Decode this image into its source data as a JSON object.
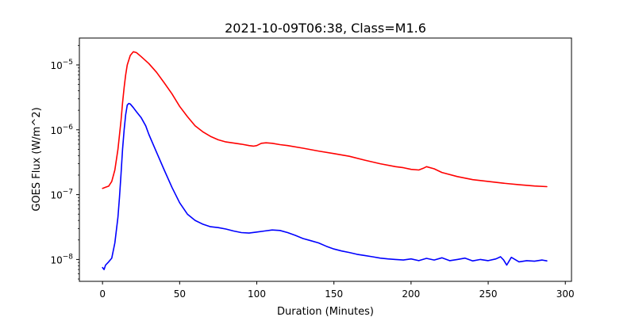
{
  "chart_data": {
    "type": "line",
    "title": "2021-10-09T06:38, Class=M1.6",
    "xlabel": "Duration (Minutes)",
    "ylabel": "GOES Flux (W/m^2)",
    "xscale": "linear",
    "yscale": "log",
    "xlim": [
      -15,
      304
    ],
    "ylim": [
      4.6e-09,
      2.6e-05
    ],
    "grid": false,
    "legend": "none",
    "x_ticks": [
      {
        "value": 0,
        "label": "0"
      },
      {
        "value": 50,
        "label": "50"
      },
      {
        "value": 100,
        "label": "100"
      },
      {
        "value": 150,
        "label": "150"
      },
      {
        "value": 200,
        "label": "200"
      },
      {
        "value": 250,
        "label": "250"
      },
      {
        "value": 300,
        "label": "300"
      }
    ],
    "y_ticks": [
      {
        "value": 1e-08,
        "base": "10",
        "exp": "−8"
      },
      {
        "value": 1e-07,
        "base": "10",
        "exp": "−7"
      },
      {
        "value": 1e-06,
        "base": "10",
        "exp": "−6"
      },
      {
        "value": 1e-05,
        "base": "10",
        "exp": "−5"
      }
    ],
    "series": [
      {
        "color": "#ff0000",
        "x": [
          0,
          2,
          4,
          6,
          8,
          10,
          12,
          13,
          14,
          15,
          16,
          18,
          20,
          22,
          25,
          30,
          35,
          40,
          45,
          50,
          55,
          60,
          65,
          70,
          75,
          80,
          90,
          95,
          98,
          100,
          103,
          106,
          110,
          115,
          120,
          130,
          140,
          150,
          160,
          170,
          180,
          190,
          195,
          200,
          205,
          208,
          210,
          215,
          220,
          230,
          240,
          250,
          260,
          270,
          280,
          288
        ],
        "y": [
          1.25e-07,
          1.3e-07,
          1.35e-07,
          1.6e-07,
          2.4e-07,
          5e-07,
          1.4e-06,
          2.6e-06,
          4.5e-06,
          7e-06,
          1e-05,
          1.4e-05,
          1.6e-05,
          1.55e-05,
          1.35e-05,
          1.05e-05,
          7.7e-06,
          5.3e-06,
          3.6e-06,
          2.3e-06,
          1.6e-06,
          1.15e-06,
          9.3e-07,
          7.9e-07,
          7e-07,
          6.5e-07,
          6e-07,
          5.7e-07,
          5.6e-07,
          5.7e-07,
          6.2e-07,
          6.3e-07,
          6.2e-07,
          5.9e-07,
          5.7e-07,
          5.2e-07,
          4.7e-07,
          4.3e-07,
          3.9e-07,
          3.4e-07,
          3e-07,
          2.7e-07,
          2.6e-07,
          2.45e-07,
          2.4e-07,
          2.55e-07,
          2.7e-07,
          2.5e-07,
          2.2e-07,
          1.9e-07,
          1.7e-07,
          1.6e-07,
          1.5e-07,
          1.42e-07,
          1.36e-07,
          1.33e-07
        ]
      },
      {
        "color": "#0000ff",
        "x": [
          0,
          1,
          2,
          4,
          6,
          8,
          10,
          11,
          12,
          13,
          14,
          15,
          16,
          17,
          18,
          20,
          22,
          25,
          28,
          30,
          35,
          40,
          45,
          50,
          55,
          60,
          65,
          70,
          75,
          80,
          85,
          90,
          95,
          100,
          105,
          110,
          115,
          120,
          125,
          130,
          135,
          140,
          145,
          150,
          155,
          160,
          165,
          170,
          175,
          180,
          185,
          190,
          195,
          200,
          205,
          210,
          215,
          220,
          225,
          230,
          235,
          240,
          245,
          250,
          255,
          258,
          260,
          262,
          265,
          270,
          275,
          280,
          285,
          288
        ],
        "y": [
          7.5e-09,
          7e-09,
          8.2e-09,
          9.2e-09,
          1.05e-08,
          1.8e-08,
          4.5e-08,
          9e-08,
          2.1e-07,
          5e-07,
          1e-06,
          1.7e-06,
          2.4e-06,
          2.55e-06,
          2.5e-06,
          2.2e-06,
          1.9e-06,
          1.55e-06,
          1.15e-06,
          8.5e-07,
          4.5e-07,
          2.4e-07,
          1.3e-07,
          7.5e-08,
          5e-08,
          4e-08,
          3.5e-08,
          3.2e-08,
          3.1e-08,
          2.95e-08,
          2.75e-08,
          2.6e-08,
          2.55e-08,
          2.65e-08,
          2.75e-08,
          2.85e-08,
          2.8e-08,
          2.6e-08,
          2.35e-08,
          2.1e-08,
          1.95e-08,
          1.8e-08,
          1.6e-08,
          1.45e-08,
          1.35e-08,
          1.28e-08,
          1.2e-08,
          1.15e-08,
          1.1e-08,
          1.05e-08,
          1.02e-08,
          1e-08,
          9.8e-09,
          1.02e-08,
          9.6e-09,
          1.04e-08,
          9.8e-09,
          1.06e-08,
          9.6e-09,
          1e-08,
          1.05e-08,
          9.5e-09,
          1e-08,
          9.6e-09,
          1.02e-08,
          1.1e-08,
          9.8e-09,
          8.2e-09,
          1.08e-08,
          9.2e-09,
          9.6e-09,
          9.4e-09,
          9.8e-09,
          9.5e-09
        ]
      }
    ]
  }
}
